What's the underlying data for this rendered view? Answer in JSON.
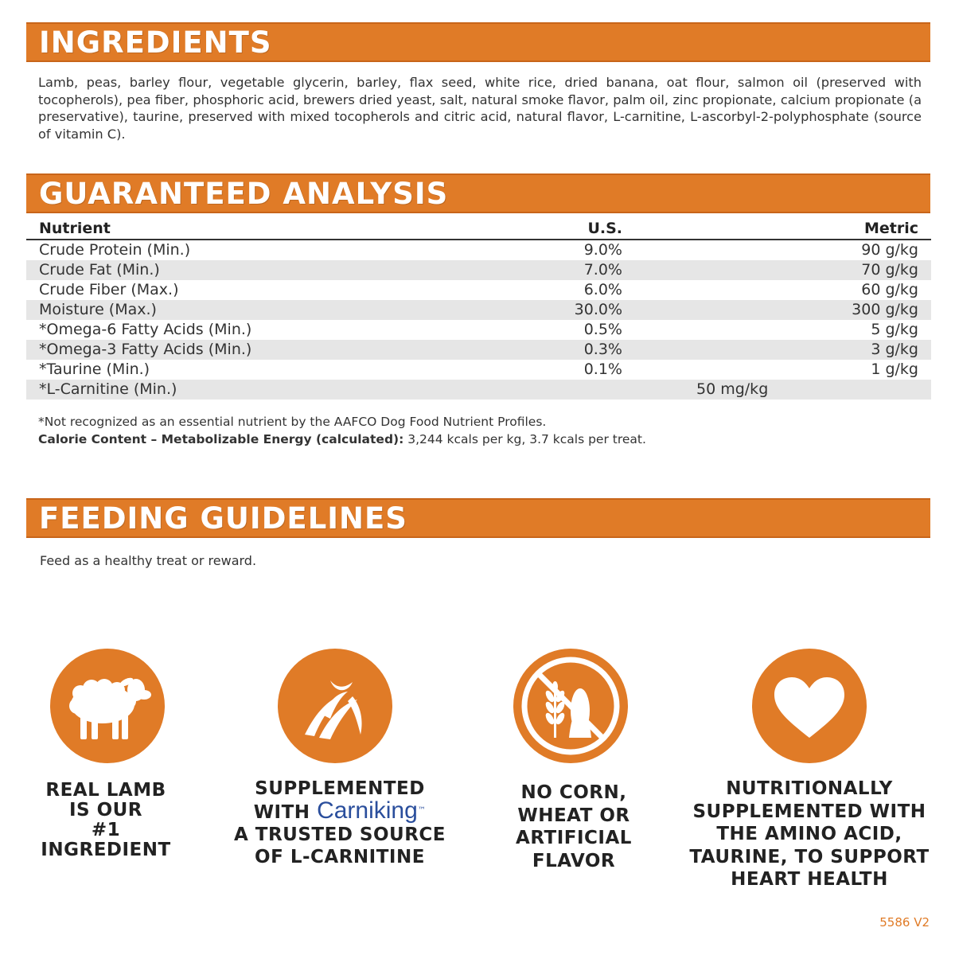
{
  "sections": {
    "ingredients_title": "INGREDIENTS",
    "analysis_title": "GUARANTEED ANALYSIS",
    "feeding_title": "FEEDING GUIDELINES"
  },
  "ingredients": "Lamb, peas, barley flour, vegetable glycerin, barley, flax seed, white rice, dried banana, oat flour, salmon oil (preserved with tocopherols), pea fiber, phosphoric acid, brewers dried yeast, salt, natural smoke flavor, palm oil, zinc propionate, calcium propionate (a preservative), taurine, preserved with mixed tocopherols and citric acid, natural flavor, L-carnitine, L-ascorbyl-2-polyphosphate (source of vitamin C).",
  "analysis": {
    "headers": {
      "nutrient": "Nutrient",
      "us": "U.S.",
      "metric": "Metric"
    },
    "rows": [
      {
        "name": "Crude Protein (Min.)",
        "us": "9.0%",
        "metric": "90 g/kg"
      },
      {
        "name": "Crude Fat (Min.)",
        "us": "7.0%",
        "metric": "70 g/kg"
      },
      {
        "name": "Crude Fiber (Max.)",
        "us": "6.0%",
        "metric": "60 g/kg"
      },
      {
        "name": "Moisture (Max.)",
        "us": "30.0%",
        "metric": "300 g/kg"
      },
      {
        "name": "*Omega-6 Fatty Acids (Min.)",
        "us": "0.5%",
        "metric": "5 g/kg"
      },
      {
        "name": "*Omega-3 Fatty Acids (Min.)",
        "us": "0.3%",
        "metric": "3 g/kg"
      },
      {
        "name": "*Taurine (Min.)",
        "us": "0.1%",
        "metric": "1 g/kg"
      },
      {
        "name": "*L-Carnitine (Min.)",
        "combined": "50 mg/kg"
      }
    ],
    "footnote": "*Not recognized as an essential nutrient by the AAFCO Dog Food Nutrient Profiles.",
    "calorie_label": "Calorie Content – Metabolizable Energy (calculated):",
    "calorie_value": " 3,244 kcals per kg, 3.7 kcals per treat."
  },
  "feeding_text": "Feed as a healthy treat or reward.",
  "badges": [
    {
      "icon": "lamb-icon",
      "lines": [
        "REAL LAMB",
        "IS OUR",
        "#1 INGREDIENT"
      ]
    },
    {
      "icon": "carniking-icon",
      "line1": "SUPPLEMENTED",
      "with": "WITH",
      "brand": "Carniking",
      "tm": "™",
      "lines": [
        "A TRUSTED SOURCE",
        "OF L-CARNITINE"
      ]
    },
    {
      "icon": "no-grain-icon",
      "lines": [
        "NO CORN,",
        "WHEAT OR",
        "ARTIFICIAL",
        "FLAVOR"
      ]
    },
    {
      "icon": "heart-icon",
      "lines": [
        "NUTRITIONALLY",
        "SUPPLEMENTED WITH",
        "THE AMINO ACID,",
        "TAURINE, TO SUPPORT",
        "HEART HEALTH"
      ]
    }
  ],
  "version": "5586 V2",
  "colors": {
    "accent": "#e07b27",
    "brand_blue": "#2a4e9c"
  }
}
